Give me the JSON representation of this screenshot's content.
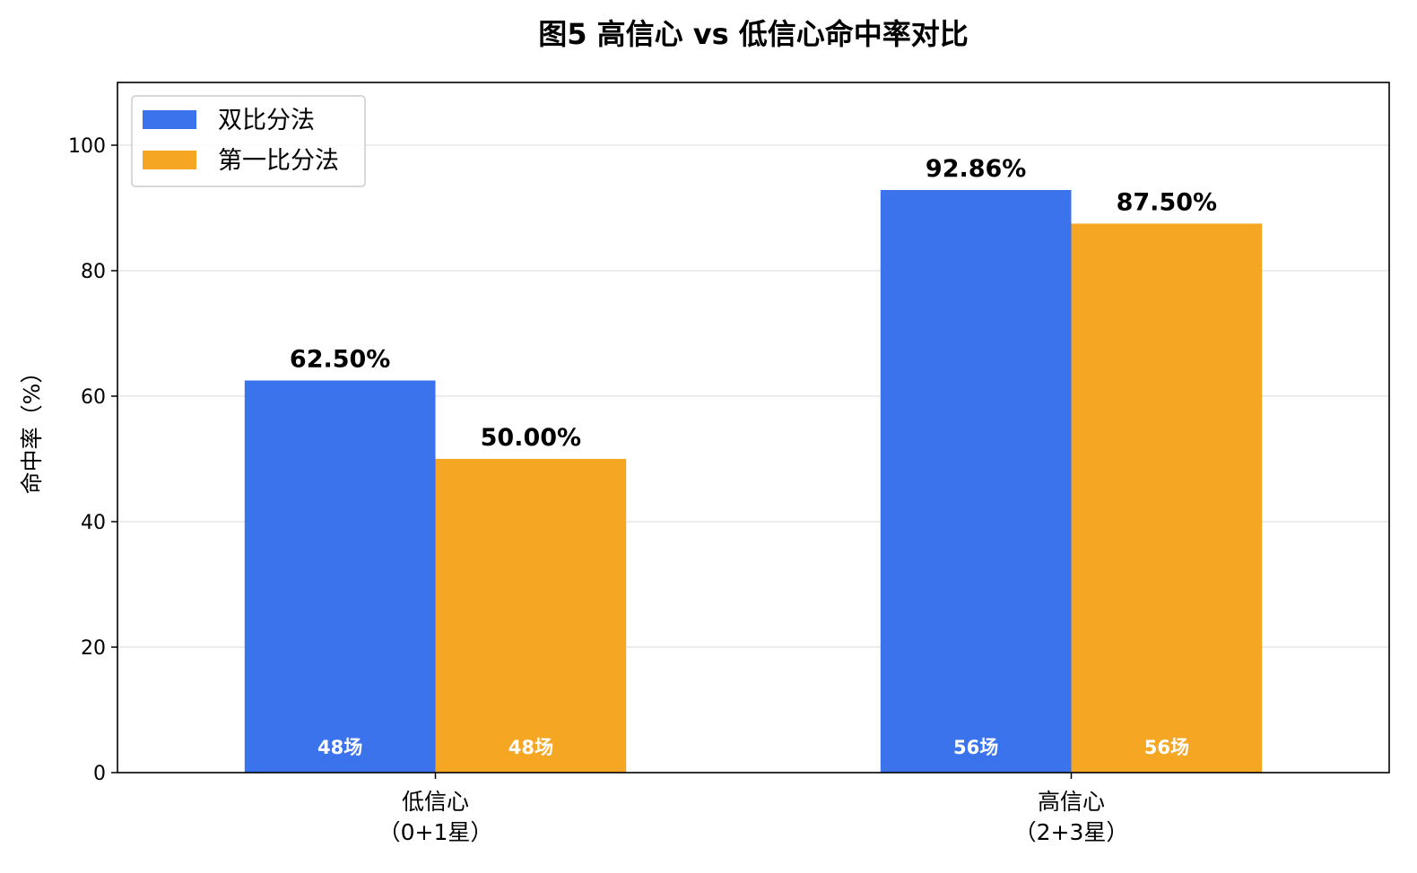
{
  "chart_data": {
    "type": "bar",
    "title": "图5 高信心 vs 低信心命中率对比",
    "ylabel": "命中率（%）",
    "xlabel": "",
    "ylim": [
      0,
      110
    ],
    "yticks": [
      0,
      20,
      40,
      60,
      80,
      100
    ],
    "grid": "horizontal",
    "legend_position": "top-left",
    "categories": [
      [
        "低信心",
        "（0+1星）"
      ],
      [
        "高信心",
        "（2+3星）"
      ]
    ],
    "series": [
      {
        "name": "双比分法",
        "color": "#3b73ed",
        "values": [
          62.5,
          92.86
        ],
        "value_labels": [
          "62.50%",
          "92.86%"
        ],
        "count_labels": [
          "48场",
          "56场"
        ]
      },
      {
        "name": "第一比分法",
        "color": "#f5a623",
        "values": [
          50.0,
          87.5
        ],
        "value_labels": [
          "50.00%",
          "87.50%"
        ],
        "count_labels": [
          "48场",
          "56场"
        ]
      }
    ]
  }
}
